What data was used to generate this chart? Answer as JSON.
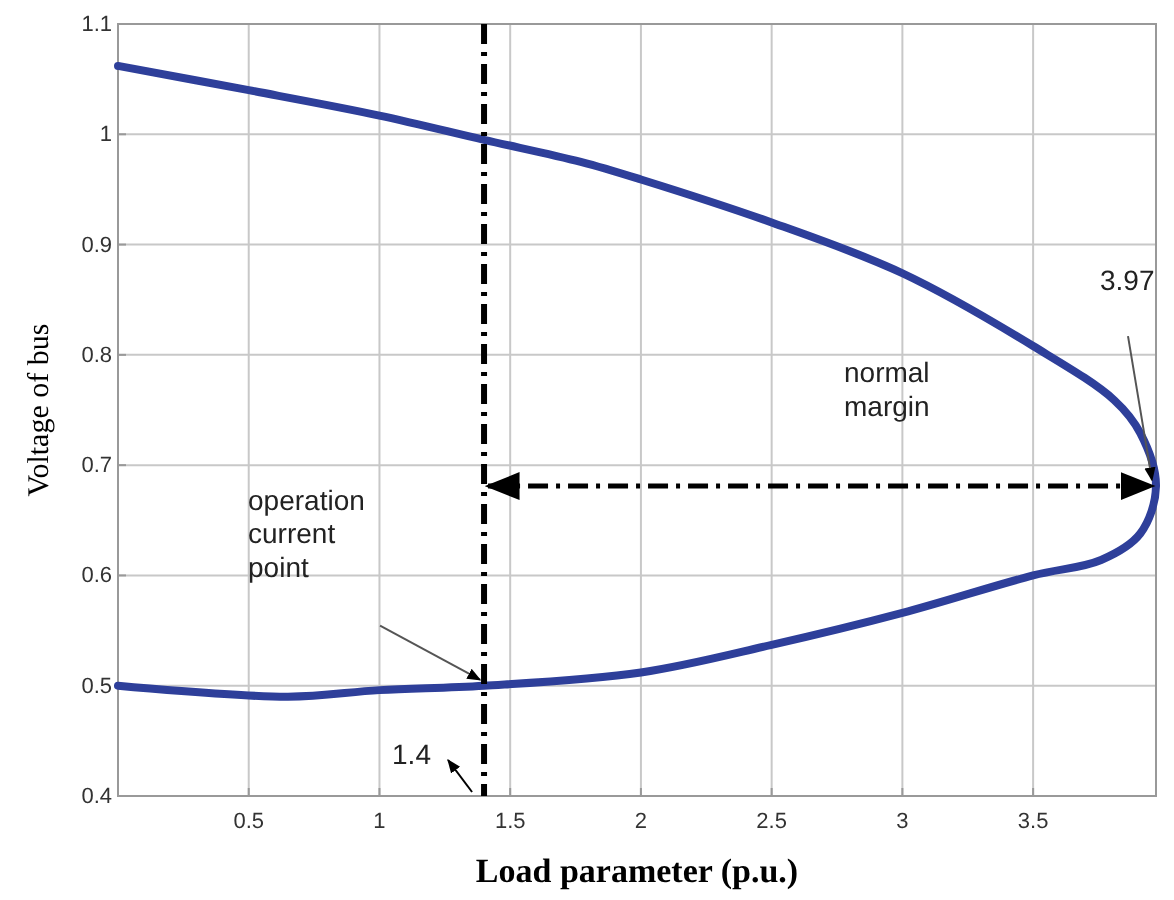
{
  "chart_data": {
    "type": "line",
    "xlabel": "Load parameter (p.u.)",
    "ylabel": "Voltage of bus",
    "xlim": [
      0,
      3.97
    ],
    "ylim": [
      0.4,
      1.1
    ],
    "xticks": [
      0.5,
      1,
      1.5,
      2,
      2.5,
      3,
      3.5
    ],
    "yticks": [
      0.4,
      0.5,
      0.6,
      0.7,
      0.8,
      0.9,
      1,
      1.1
    ],
    "grid": true,
    "series": [
      {
        "color": "#2e3f9a",
        "x": [
          0,
          0.5,
          1,
          1.4,
          1.77,
          2,
          2.5,
          3,
          3.5,
          3.81,
          3.91,
          3.97,
          3.91,
          3.76,
          3.5,
          3,
          2.5,
          2,
          1.4,
          1,
          0.65,
          0
        ],
        "values": [
          1.062,
          1.04,
          1.017,
          0.995,
          0.975,
          0.959,
          0.92,
          0.874,
          0.808,
          0.759,
          0.729,
          0.681,
          0.638,
          0.614,
          0.6,
          0.566,
          0.537,
          0.512,
          0.5,
          0.496,
          0.49,
          0.5
        ]
      }
    ],
    "ref_lines": [
      {
        "axis": "x",
        "value": 1.4,
        "color": "#000000",
        "line_style": "dashed"
      }
    ],
    "annotations": [
      "operation current point",
      "1.4",
      "3.97",
      "normal margin"
    ]
  }
}
